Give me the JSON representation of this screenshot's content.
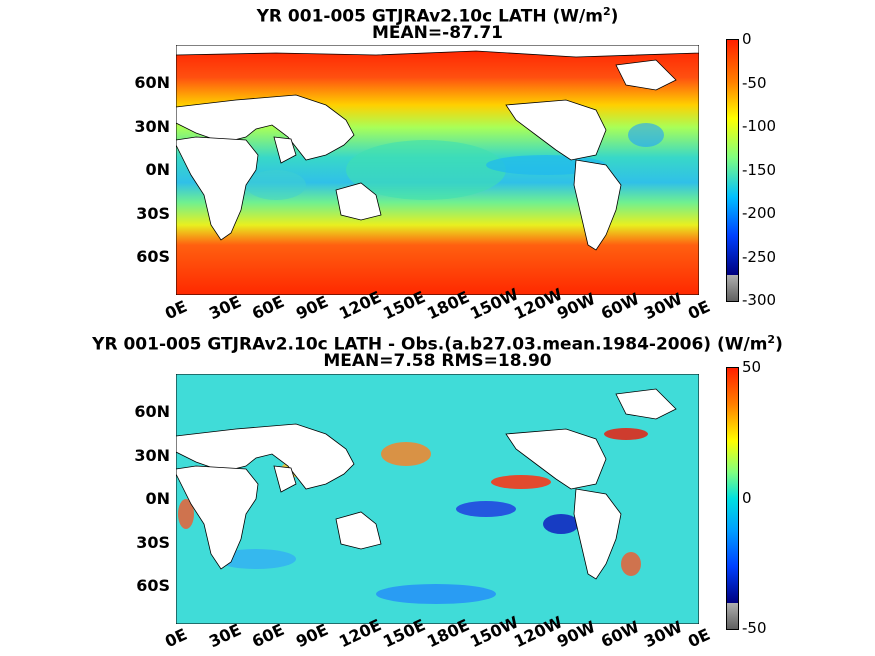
{
  "panels": [
    {
      "title_parts": [
        "YR 001-005 GTJRAv2.10c  LATH (W/m",
        "2",
        ")"
      ],
      "subtitle": "MEAN=-87.71",
      "colorbar_ticks": [
        "0",
        "-50",
        "-100",
        "-150",
        "-200",
        "-250",
        "-300"
      ],
      "colorbar_range": [
        -300,
        0
      ]
    },
    {
      "title_parts": [
        "YR 001-005 GTJRAv2.10c LATH - Obs.(a.b27.03.mean.1984-2006) (W/m",
        "2",
        ")"
      ],
      "subtitle": "MEAN=7.58 RMS=18.90",
      "colorbar_ticks": [
        "50",
        "0",
        "-50"
      ],
      "colorbar_range": [
        -50,
        50
      ]
    }
  ],
  "lat_labels": [
    "60N",
    "30N",
    "0N",
    "30S",
    "60S"
  ],
  "lon_labels": [
    "0E",
    "30E",
    "60E",
    "90E",
    "120E",
    "150E",
    "180E",
    "150W",
    "120W",
    "90W",
    "60W",
    "30W",
    "0E"
  ],
  "colors": {
    "ocean_mid": "#35d2c8",
    "ocean_high": "#f04010",
    "colormap": [
      "#00007f",
      "#0000ff",
      "#00a0ff",
      "#30e0d0",
      "#a0ff60",
      "#ffff00",
      "#ff9000",
      "#ff2000",
      "#7f0000"
    ]
  }
}
